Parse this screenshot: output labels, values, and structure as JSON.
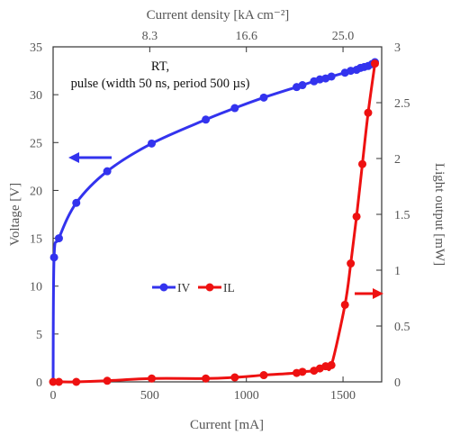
{
  "chart_data": {
    "type": "line",
    "xlabel": "Current [mA]",
    "ylabel_left": "Voltage [V]",
    "ylabel_right": "Light output [mW]",
    "top_axis_label": "Current density [kA cm⁻²]",
    "top_ticks": [
      {
        "at": 500,
        "label": "8.3"
      },
      {
        "at": 1000,
        "label": "16.6"
      },
      {
        "at": 1500,
        "label": "25.0"
      }
    ],
    "xlim": [
      0,
      1700
    ],
    "ylim_left": [
      0,
      35
    ],
    "ylim_right": [
      0,
      3
    ],
    "x_ticks": [
      "0",
      "500",
      "1000",
      "1500"
    ],
    "y_left_ticks": [
      "0",
      "5",
      "10",
      "15",
      "20",
      "25",
      "30",
      "35"
    ],
    "y_right_ticks": [
      "0",
      "0.5",
      "1",
      "1.5",
      "2",
      "2.5",
      "3"
    ],
    "annotation_lines": [
      "RT,",
      "pulse (width 50 ns, period 500 µs)"
    ],
    "series": [
      {
        "name": "IV",
        "axis": "left",
        "color": "#3333ee",
        "points": [
          [
            0,
            0
          ],
          [
            5,
            13
          ],
          [
            30,
            15
          ],
          [
            120,
            18.7
          ],
          [
            280,
            22
          ],
          [
            510,
            24.9
          ],
          [
            790,
            27.4
          ],
          [
            940,
            28.6
          ],
          [
            1090,
            29.7
          ],
          [
            1260,
            30.8
          ],
          [
            1290,
            31
          ],
          [
            1350,
            31.4
          ],
          [
            1380,
            31.6
          ],
          [
            1410,
            31.7
          ],
          [
            1440,
            31.9
          ],
          [
            1510,
            32.3
          ],
          [
            1540,
            32.5
          ],
          [
            1570,
            32.6
          ],
          [
            1590,
            32.8
          ],
          [
            1610,
            32.9
          ],
          [
            1630,
            33
          ],
          [
            1650,
            33.2
          ],
          [
            1665,
            33.4
          ]
        ]
      },
      {
        "name": "IL",
        "axis": "right",
        "color": "#ee1111",
        "points": [
          [
            0,
            0
          ],
          [
            30,
            0
          ],
          [
            120,
            0
          ],
          [
            280,
            0.01
          ],
          [
            510,
            0.03
          ],
          [
            790,
            0.03
          ],
          [
            940,
            0.04
          ],
          [
            1090,
            0.06
          ],
          [
            1260,
            0.08
          ],
          [
            1290,
            0.09
          ],
          [
            1350,
            0.1
          ],
          [
            1380,
            0.12
          ],
          [
            1410,
            0.14
          ],
          [
            1440,
            0.15
          ],
          [
            1510,
            0.69
          ],
          [
            1540,
            1.06
          ],
          [
            1570,
            1.48
          ],
          [
            1600,
            1.95
          ],
          [
            1630,
            2.41
          ],
          [
            1665,
            2.85
          ]
        ]
      }
    ],
    "legend_position": "center",
    "grid": false
  }
}
